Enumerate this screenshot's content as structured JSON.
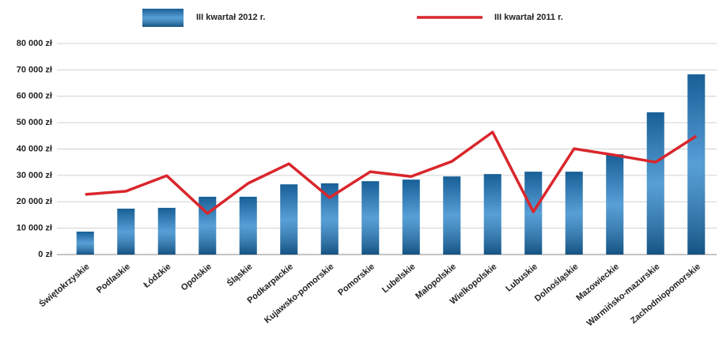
{
  "chart_data": {
    "type": "bar+line",
    "categories": [
      "Świętokrzyskie",
      "Podlaskie",
      "Łódzkie",
      "Opolskie",
      "Śląskie",
      "Podkarpackie",
      "Kujawsko-pomorskie",
      "Pomorskie",
      "Lubelskie",
      "Małopolskie",
      "Wielkopolskie",
      "Lubuskie",
      "Dolnośląskie",
      "Mazowieckie",
      "Warmińsko-mazurskie",
      "Zachodniopomorskie"
    ],
    "series": [
      {
        "name": "III kwartał 2012 r.",
        "type": "bar",
        "color": "#1f7fc8",
        "values": [
          8700,
          17400,
          17700,
          21900,
          21900,
          26600,
          27000,
          27800,
          28400,
          29600,
          30500,
          31400,
          31400,
          38000,
          53900,
          68300
        ]
      },
      {
        "name": "III kwartał 2011 r.",
        "type": "line",
        "color": "#d9262c",
        "values": [
          22800,
          24000,
          29900,
          15600,
          27000,
          34400,
          21600,
          31400,
          29600,
          35300,
          46400,
          16200,
          40100,
          37700,
          35000,
          44900
        ]
      }
    ],
    "ylim": [
      0,
      80000
    ],
    "yticks": [
      {
        "value": 0,
        "label": "0 zł"
      },
      {
        "value": 10000,
        "label": "10 000 zł"
      },
      {
        "value": 20000,
        "label": "20 000 zł"
      },
      {
        "value": 30000,
        "label": "30 000 zł"
      },
      {
        "value": 40000,
        "label": "40 000 zł"
      },
      {
        "value": 50000,
        "label": "50 000 zł"
      },
      {
        "value": 60000,
        "label": "60 000 zł"
      },
      {
        "value": 70000,
        "label": "70 000 zł"
      },
      {
        "value": 80000,
        "label": "80 000 zł"
      }
    ],
    "grid": true,
    "legend": "top"
  }
}
